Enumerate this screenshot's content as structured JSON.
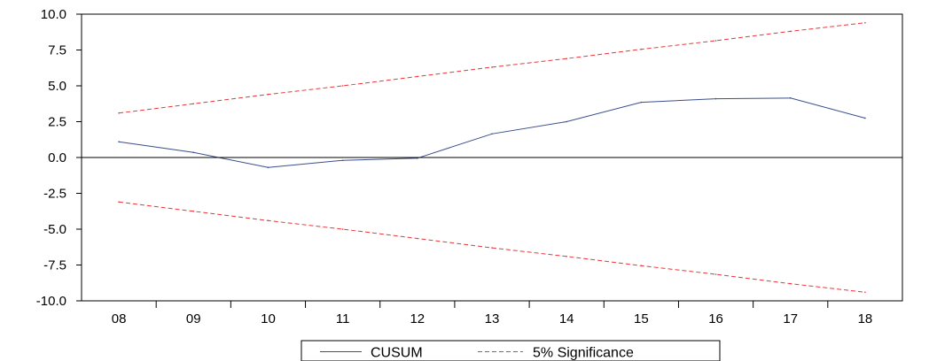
{
  "chart_data": {
    "type": "line",
    "title": "",
    "xlabel": "",
    "ylabel": "",
    "categories": [
      "08",
      "09",
      "10",
      "11",
      "12",
      "13",
      "14",
      "15",
      "16",
      "17",
      "18"
    ],
    "ylim": [
      -10.0,
      10.0
    ],
    "yticks": [
      "10.0",
      "7.5",
      "5.0",
      "2.5",
      "0.0",
      "-2.5",
      "-5.0",
      "-7.5",
      "-10.0"
    ],
    "grid": false,
    "zero_line": true,
    "legend_position": "bottom-center",
    "series": [
      {
        "name": "CUSUM",
        "color": "#3a4f8c",
        "style": "solid",
        "values": [
          1.1,
          0.35,
          -0.7,
          -0.2,
          -0.05,
          1.65,
          2.5,
          3.85,
          4.1,
          4.15,
          2.75
        ]
      },
      {
        "name": "5% Significance",
        "color": "#e8383b",
        "style": "dashed",
        "values": [
          3.1,
          3.75,
          4.4,
          5.0,
          5.65,
          6.3,
          6.9,
          7.55,
          8.15,
          8.8,
          9.4
        ]
      },
      {
        "name": "",
        "color": "#e8383b",
        "style": "dashed",
        "values": [
          -3.1,
          -3.75,
          -4.4,
          -5.0,
          -5.65,
          -6.3,
          -6.9,
          -7.55,
          -8.15,
          -8.8,
          -9.4
        ]
      }
    ]
  }
}
